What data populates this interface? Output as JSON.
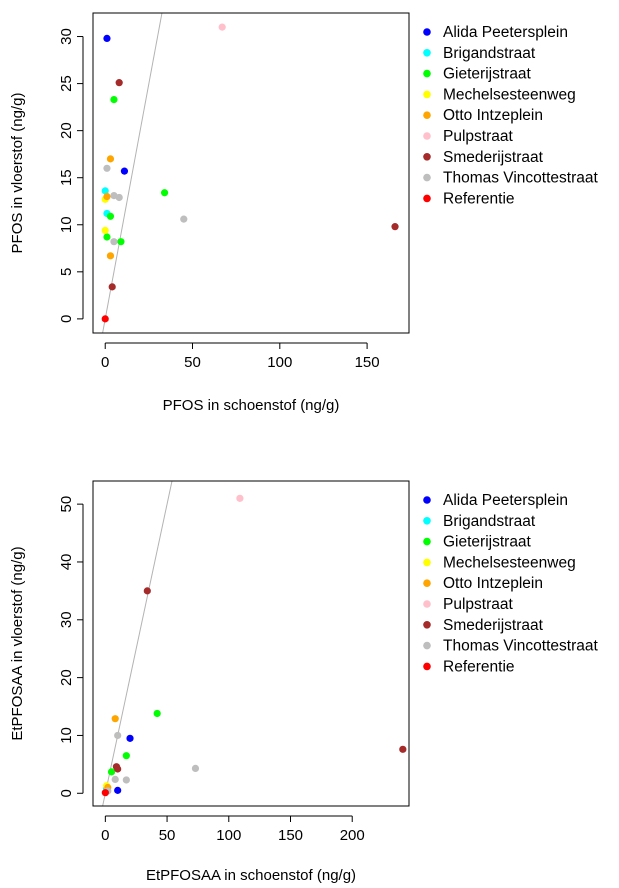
{
  "chart_data": [
    {
      "type": "scatter",
      "xlabel": "PFOS in schoenstof (ng/g)",
      "ylabel": "PFOS in vloerstof (ng/g)",
      "xlim": [
        -7,
        174
      ],
      "ylim": [
        -1.5,
        32.5
      ],
      "xticks": [
        0,
        50,
        100,
        150
      ],
      "yticks": [
        0,
        5,
        10,
        15,
        20,
        25,
        30
      ],
      "reference_line": {
        "intercept": 0,
        "slope": 1,
        "color": "#b3b3b3"
      },
      "legend_position": "right",
      "series": [
        {
          "name": "Alida Peetersplein",
          "color": "#0000ff",
          "points": [
            [
              1,
              29.8
            ],
            [
              11,
              15.7
            ]
          ]
        },
        {
          "name": "Brigandstraat",
          "color": "#00ffff",
          "points": [
            [
              0,
              13.6
            ],
            [
              1,
              11.2
            ]
          ]
        },
        {
          "name": "Gieterijstraat",
          "color": "#00ff00",
          "points": [
            [
              5,
              23.3
            ],
            [
              34,
              13.4
            ],
            [
              3,
              10.9
            ],
            [
              9,
              8.2
            ],
            [
              1,
              8.7
            ]
          ]
        },
        {
          "name": "Mechelsesteenweg",
          "color": "#ffff00",
          "points": [
            [
              0,
              9.4
            ],
            [
              0,
              12.7
            ]
          ]
        },
        {
          "name": "Otto Intzeplein",
          "color": "#ffa500",
          "points": [
            [
              3,
              17
            ],
            [
              3,
              6.7
            ],
            [
              1,
              13.0
            ]
          ]
        },
        {
          "name": "Pulpstraat",
          "color": "#ffc0cb",
          "points": [
            [
              67,
              31
            ]
          ]
        },
        {
          "name": "Smederijstraat",
          "color": "#a52a2a",
          "points": [
            [
              8,
              25.1
            ],
            [
              4,
              3.4
            ],
            [
              166,
              9.8
            ]
          ]
        },
        {
          "name": "Thomas Vincottestraat",
          "color": "#bebebe",
          "points": [
            [
              1,
              16
            ],
            [
              5,
              13.1
            ],
            [
              8,
              12.9
            ],
            [
              5,
              8.2
            ],
            [
              45,
              10.6
            ]
          ]
        },
        {
          "name": "Referentie",
          "color": "#ff0000",
          "points": [
            [
              0,
              0
            ]
          ]
        }
      ]
    },
    {
      "type": "scatter",
      "xlabel": "EtPFOSAA in schoenstof (ng/g)",
      "ylabel": "EtPFOSAA in vloerstof (ng/g)",
      "xlim": [
        -10,
        246
      ],
      "ylim": [
        -2.2,
        54
      ],
      "xticks": [
        0,
        50,
        100,
        150,
        200
      ],
      "yticks": [
        0,
        10,
        20,
        30,
        40,
        50
      ],
      "reference_line": {
        "intercept": 0,
        "slope": 1,
        "color": "#b3b3b3"
      },
      "legend_position": "right",
      "series": [
        {
          "name": "Alida Peetersplein",
          "color": "#0000ff",
          "points": [
            [
              20,
              9.5
            ],
            [
              10,
              0.5
            ]
          ]
        },
        {
          "name": "Brigandstraat",
          "color": "#00ffff",
          "points": [
            [
              1,
              0.8
            ]
          ]
        },
        {
          "name": "Gieterijstraat",
          "color": "#00ff00",
          "points": [
            [
              42,
              13.8
            ],
            [
              17,
              6.5
            ],
            [
              5,
              3.7
            ]
          ]
        },
        {
          "name": "Mechelsesteenweg",
          "color": "#ffff00",
          "points": [
            [
              1,
              1.3
            ]
          ]
        },
        {
          "name": "Otto Intzeplein",
          "color": "#ffa500",
          "points": [
            [
              8,
              12.9
            ],
            [
              2,
              1.0
            ]
          ]
        },
        {
          "name": "Pulpstraat",
          "color": "#ffc0cb",
          "points": [
            [
              109,
              51
            ]
          ]
        },
        {
          "name": "Smederijstraat",
          "color": "#a52a2a",
          "points": [
            [
              34,
              35
            ],
            [
              9,
              4.6
            ],
            [
              10,
              4.2
            ],
            [
              241,
              7.6
            ]
          ]
        },
        {
          "name": "Thomas Vincottestraat",
          "color": "#bebebe",
          "points": [
            [
              10,
              10
            ],
            [
              73,
              4.3
            ],
            [
              17,
              2.3
            ],
            [
              8,
              2.4
            ],
            [
              2,
              0.4
            ]
          ]
        },
        {
          "name": "Referentie",
          "color": "#ff0000",
          "points": [
            [
              0,
              0.1
            ]
          ]
        }
      ]
    }
  ]
}
